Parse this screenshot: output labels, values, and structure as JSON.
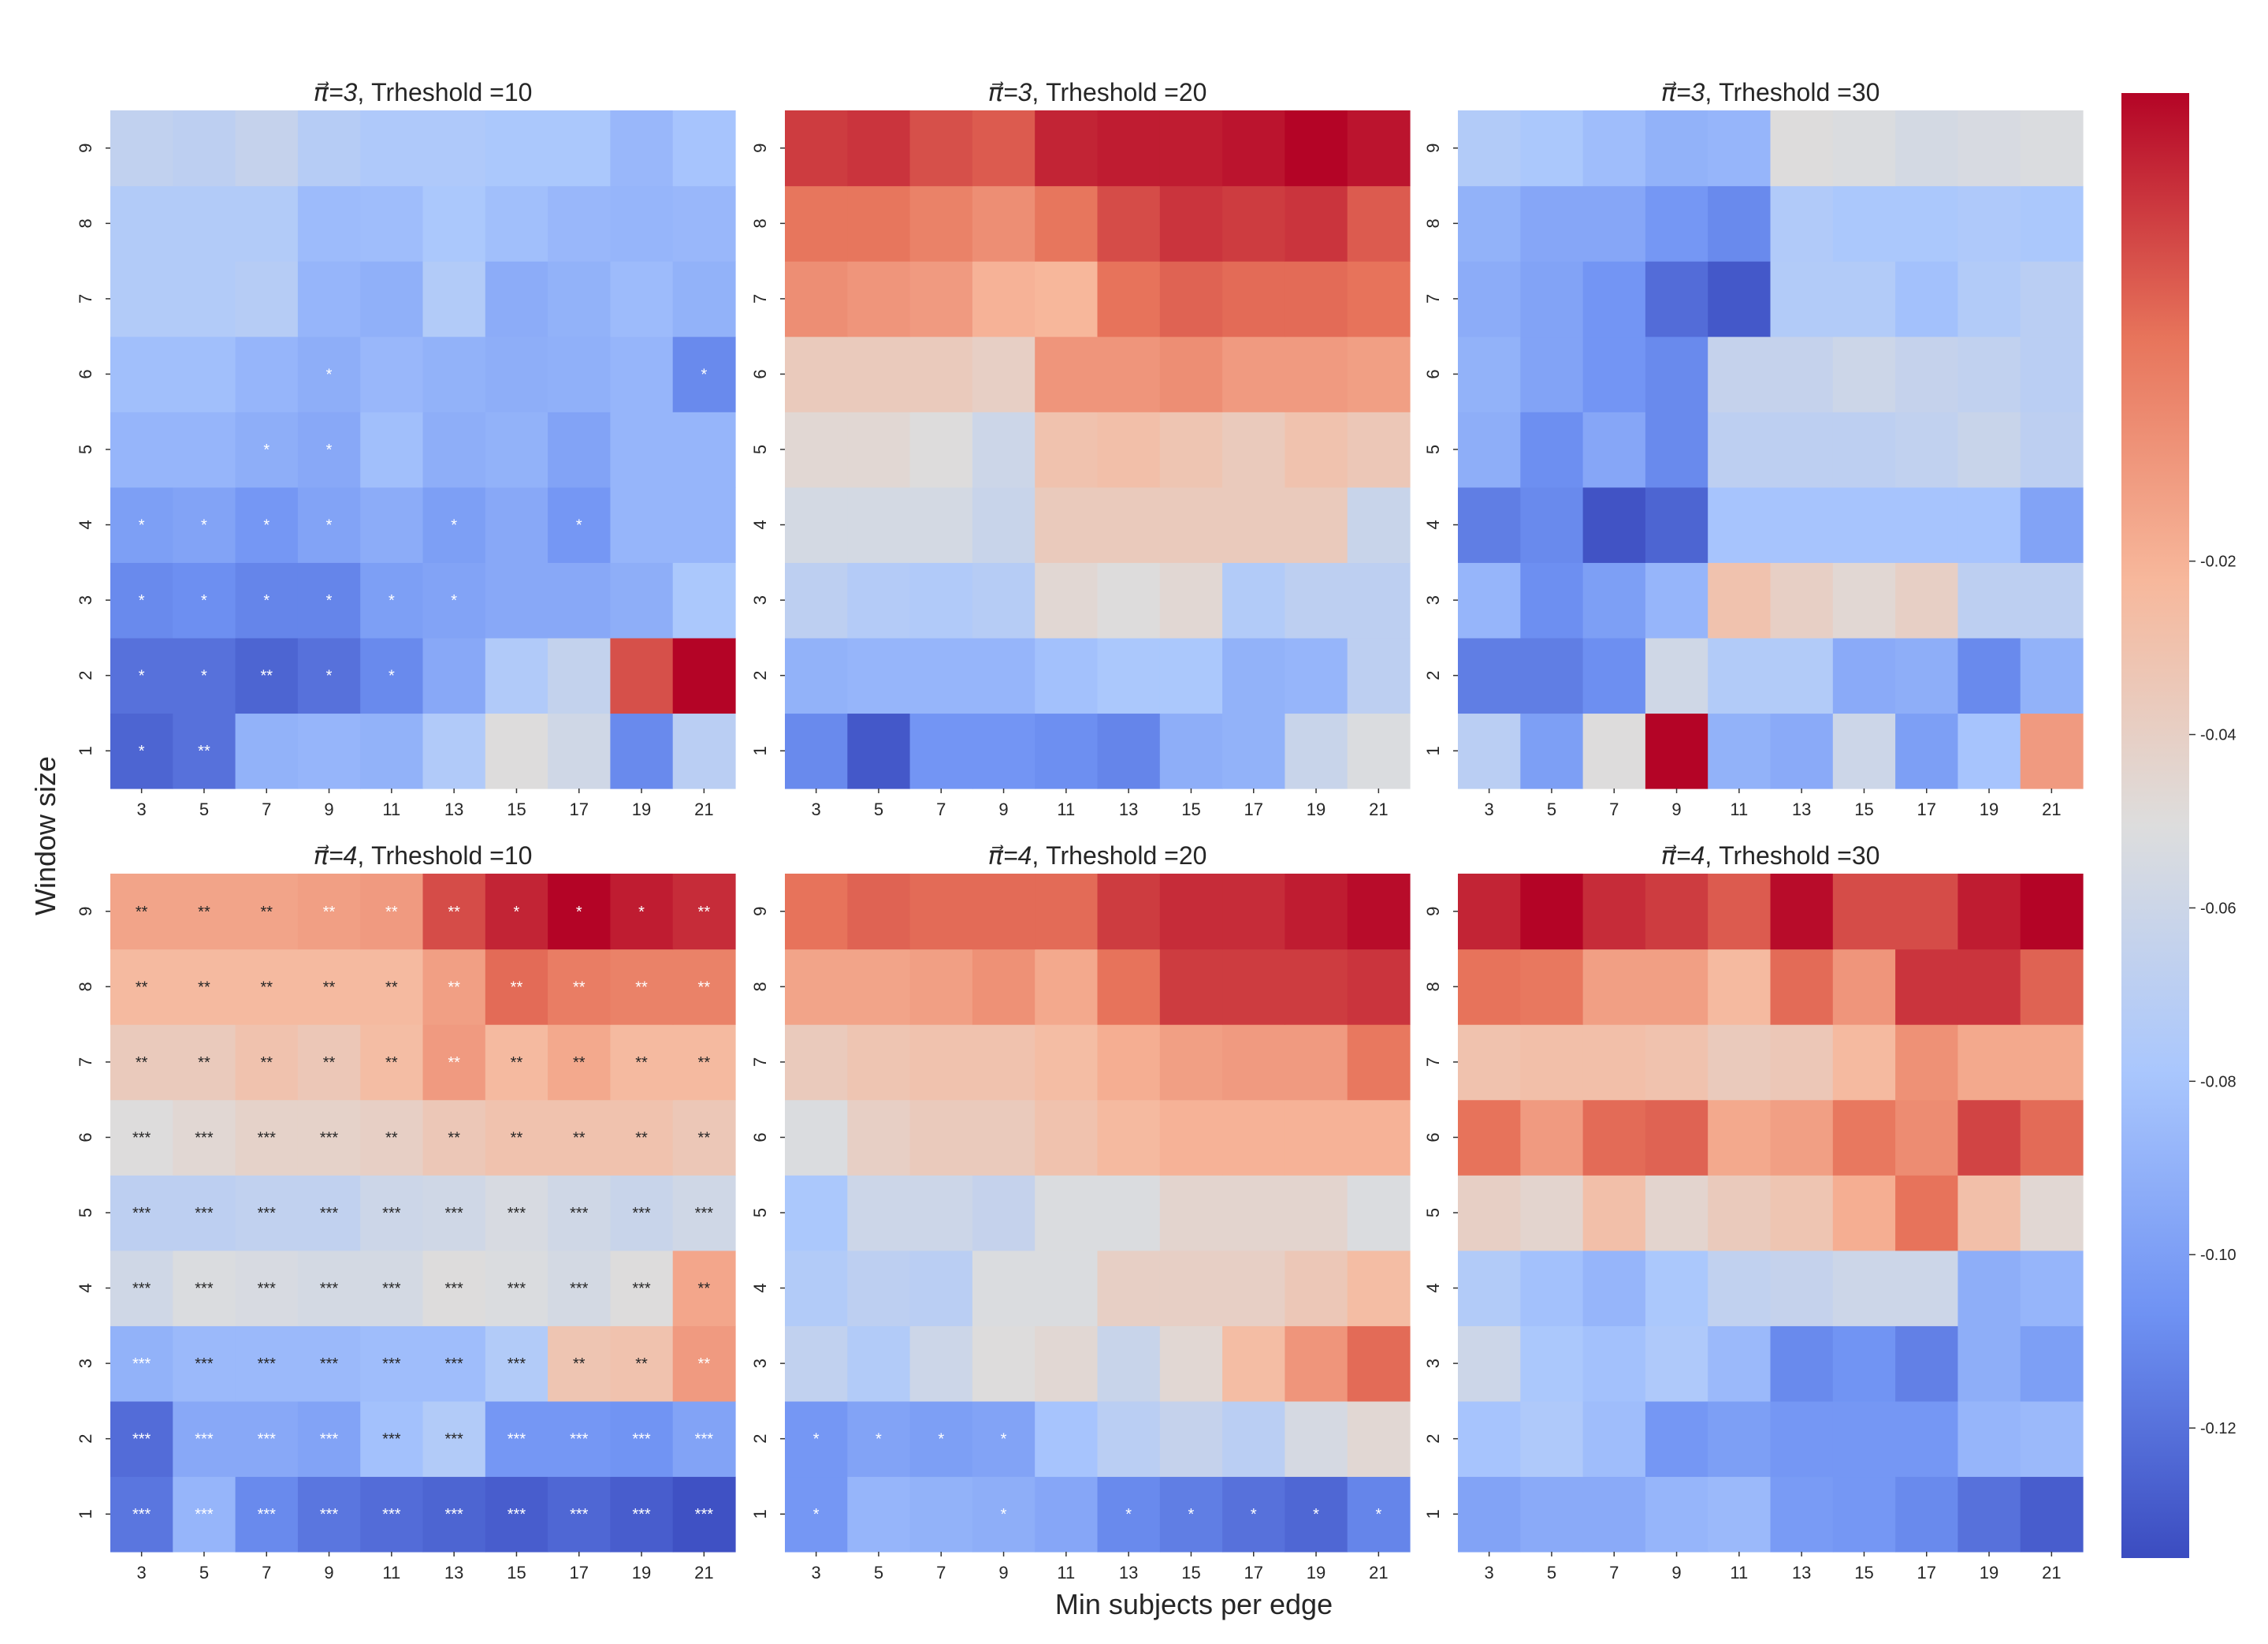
{
  "figure": {
    "ylabel": "Window size",
    "xlabel": "Min subjects per edge",
    "colorbar": {
      "ticks": [
        -0.12,
        -0.1,
        -0.08,
        -0.06,
        -0.04,
        -0.02
      ],
      "tick_labels": [
        "-0.12",
        "-0.10",
        "-0.08",
        "-0.06",
        "-0.04",
        "-0.02"
      ],
      "range": [
        -0.135,
        0.034
      ],
      "colormap": [
        "#3b4cc0",
        "#6f92f3",
        "#aac7fd",
        "#dddddd",
        "#f7b89c",
        "#e7745b",
        "#b40426"
      ]
    }
  },
  "chart_data": [
    {
      "type": "heatmap",
      "title_prefix": "π⃗=3",
      "title": ", Trheshold =10",
      "x": [
        3,
        5,
        7,
        9,
        11,
        13,
        15,
        17,
        19,
        21
      ],
      "y": [
        1,
        2,
        3,
        4,
        5,
        6,
        7,
        8,
        9
      ],
      "values": [
        [
          -0.125,
          -0.12,
          -0.09,
          -0.088,
          -0.09,
          -0.075,
          -0.05,
          -0.058,
          -0.11,
          -0.07
        ],
        [
          -0.12,
          -0.12,
          -0.125,
          -0.12,
          -0.11,
          -0.095,
          -0.075,
          -0.065,
          0.015,
          0.034
        ],
        [
          -0.11,
          -0.108,
          -0.112,
          -0.112,
          -0.1,
          -0.098,
          -0.095,
          -0.095,
          -0.092,
          -0.078
        ],
        [
          -0.1,
          -0.098,
          -0.104,
          -0.098,
          -0.093,
          -0.1,
          -0.095,
          -0.104,
          -0.088,
          -0.088
        ],
        [
          -0.088,
          -0.088,
          -0.092,
          -0.095,
          -0.083,
          -0.092,
          -0.09,
          -0.098,
          -0.088,
          -0.088
        ],
        [
          -0.083,
          -0.083,
          -0.088,
          -0.092,
          -0.087,
          -0.09,
          -0.092,
          -0.091,
          -0.088,
          -0.11
        ],
        [
          -0.074,
          -0.074,
          -0.072,
          -0.088,
          -0.091,
          -0.074,
          -0.093,
          -0.09,
          -0.085,
          -0.09
        ],
        [
          -0.074,
          -0.074,
          -0.074,
          -0.085,
          -0.084,
          -0.078,
          -0.083,
          -0.087,
          -0.088,
          -0.087
        ],
        [
          -0.066,
          -0.068,
          -0.064,
          -0.072,
          -0.076,
          -0.076,
          -0.078,
          -0.078,
          -0.087,
          -0.08
        ]
      ],
      "annotations": [
        [
          "*",
          "**",
          "",
          "",
          "",
          "",
          "",
          "",
          "",
          ""
        ],
        [
          "*",
          "*",
          "**",
          "*",
          "*",
          "",
          "",
          "",
          "",
          ""
        ],
        [
          "*",
          "*",
          "*",
          "*",
          "*",
          "*",
          "",
          "",
          "",
          ""
        ],
        [
          "*",
          "*",
          "*",
          "*",
          "",
          "*",
          "",
          "*",
          "",
          ""
        ],
        [
          "",
          "",
          "*",
          "*",
          "",
          "",
          "",
          "",
          "",
          ""
        ],
        [
          "",
          "",
          "",
          "*",
          "",
          "",
          "",
          "",
          "",
          "*"
        ],
        [
          "",
          "",
          "",
          "",
          "",
          "",
          "",
          "",
          "",
          ""
        ],
        [
          "",
          "",
          "",
          "",
          "",
          "",
          "",
          "",
          "",
          ""
        ],
        [
          "",
          "",
          "",
          "",
          "",
          "",
          "",
          "",
          "",
          ""
        ]
      ]
    },
    {
      "type": "heatmap",
      "title_prefix": "π⃗=3",
      "title": ", Trheshold =20",
      "x": [
        3,
        5,
        7,
        9,
        11,
        13,
        15,
        17,
        19,
        21
      ],
      "y": [
        1,
        2,
        3,
        4,
        5,
        6,
        7,
        8,
        9
      ],
      "values": [
        [
          -0.11,
          -0.13,
          -0.105,
          -0.105,
          -0.108,
          -0.112,
          -0.092,
          -0.09,
          -0.062,
          -0.052
        ],
        [
          -0.09,
          -0.088,
          -0.088,
          -0.088,
          -0.082,
          -0.078,
          -0.078,
          -0.09,
          -0.088,
          -0.068
        ],
        [
          -0.068,
          -0.073,
          -0.075,
          -0.072,
          -0.046,
          -0.05,
          -0.046,
          -0.074,
          -0.068,
          -0.068
        ],
        [
          -0.056,
          -0.056,
          -0.056,
          -0.062,
          -0.036,
          -0.036,
          -0.036,
          -0.036,
          -0.036,
          -0.062
        ],
        [
          -0.046,
          -0.046,
          -0.05,
          -0.06,
          -0.03,
          -0.028,
          -0.032,
          -0.036,
          -0.03,
          -0.034
        ],
        [
          -0.036,
          -0.036,
          -0.036,
          -0.04,
          -0.008,
          -0.008,
          -0.005,
          -0.01,
          -0.01,
          -0.012
        ],
        [
          -0.005,
          -0.008,
          -0.01,
          -0.02,
          -0.022,
          0.006,
          0.01,
          0.008,
          0.008,
          0.006
        ],
        [
          0.005,
          0.005,
          0.0,
          -0.005,
          0.005,
          0.016,
          0.022,
          0.02,
          0.022,
          0.012
        ],
        [
          0.02,
          0.022,
          0.015,
          0.012,
          0.026,
          0.028,
          0.028,
          0.03,
          0.034,
          0.03
        ]
      ],
      "annotations": []
    },
    {
      "type": "heatmap",
      "title_prefix": "π⃗=3",
      "title": ", Trheshold =30",
      "x": [
        3,
        5,
        7,
        9,
        11,
        13,
        15,
        17,
        19,
        21
      ],
      "y": [
        1,
        2,
        3,
        4,
        5,
        6,
        7,
        8,
        9
      ],
      "values": [
        [
          -0.07,
          -0.1,
          -0.05,
          0.034,
          -0.09,
          -0.094,
          -0.06,
          -0.1,
          -0.08,
          -0.01
        ],
        [
          -0.115,
          -0.115,
          -0.108,
          -0.058,
          -0.074,
          -0.074,
          -0.094,
          -0.092,
          -0.11,
          -0.09
        ],
        [
          -0.088,
          -0.108,
          -0.1,
          -0.088,
          -0.03,
          -0.04,
          -0.046,
          -0.04,
          -0.068,
          -0.068
        ],
        [
          -0.115,
          -0.11,
          -0.132,
          -0.125,
          -0.08,
          -0.08,
          -0.08,
          -0.08,
          -0.08,
          -0.098
        ],
        [
          -0.092,
          -0.108,
          -0.096,
          -0.11,
          -0.068,
          -0.068,
          -0.068,
          -0.066,
          -0.062,
          -0.068
        ],
        [
          -0.09,
          -0.098,
          -0.105,
          -0.11,
          -0.064,
          -0.064,
          -0.06,
          -0.064,
          -0.066,
          -0.07
        ],
        [
          -0.093,
          -0.098,
          -0.105,
          -0.122,
          -0.13,
          -0.074,
          -0.074,
          -0.082,
          -0.074,
          -0.07
        ],
        [
          -0.09,
          -0.096,
          -0.096,
          -0.104,
          -0.11,
          -0.075,
          -0.078,
          -0.078,
          -0.076,
          -0.078
        ],
        [
          -0.074,
          -0.078,
          -0.084,
          -0.09,
          -0.088,
          -0.05,
          -0.052,
          -0.056,
          -0.054,
          -0.052
        ]
      ],
      "annotations": []
    },
    {
      "type": "heatmap",
      "title_prefix": "π⃗=4",
      "title": ", Trheshold =10",
      "x": [
        3,
        5,
        7,
        9,
        11,
        13,
        15,
        17,
        19,
        21
      ],
      "y": [
        1,
        2,
        3,
        4,
        5,
        6,
        7,
        8,
        9
      ],
      "values": [
        [
          -0.118,
          -0.088,
          -0.11,
          -0.118,
          -0.122,
          -0.125,
          -0.128,
          -0.124,
          -0.128,
          -0.133
        ],
        [
          -0.122,
          -0.095,
          -0.095,
          -0.098,
          -0.082,
          -0.074,
          -0.104,
          -0.104,
          -0.106,
          -0.098
        ],
        [
          -0.09,
          -0.086,
          -0.086,
          -0.086,
          -0.084,
          -0.084,
          -0.074,
          -0.032,
          -0.03,
          -0.01
        ],
        [
          -0.058,
          -0.052,
          -0.054,
          -0.056,
          -0.056,
          -0.05,
          -0.052,
          -0.056,
          -0.05,
          -0.015
        ],
        [
          -0.068,
          -0.068,
          -0.066,
          -0.066,
          -0.06,
          -0.058,
          -0.054,
          -0.058,
          -0.062,
          -0.058
        ],
        [
          -0.05,
          -0.046,
          -0.042,
          -0.042,
          -0.04,
          -0.034,
          -0.03,
          -0.03,
          -0.03,
          -0.034
        ],
        [
          -0.036,
          -0.036,
          -0.03,
          -0.034,
          -0.026,
          -0.01,
          -0.024,
          -0.016,
          -0.024,
          -0.024
        ],
        [
          -0.024,
          -0.024,
          -0.024,
          -0.024,
          -0.024,
          -0.012,
          0.008,
          0.002,
          0.0,
          0.0
        ],
        [
          -0.014,
          -0.014,
          -0.014,
          -0.012,
          -0.01,
          0.016,
          0.026,
          0.034,
          0.028,
          0.024
        ]
      ],
      "annotations": [
        [
          "***",
          "***",
          "***",
          "***",
          "***",
          "***",
          "***",
          "***",
          "***",
          "***"
        ],
        [
          "***",
          "***",
          "***",
          "***",
          "***",
          "***",
          "***",
          "***",
          "***",
          "***"
        ],
        [
          "***",
          "***",
          "***",
          "***",
          "***",
          "***",
          "***",
          "**",
          "**",
          "**"
        ],
        [
          "***",
          "***",
          "***",
          "***",
          "***",
          "***",
          "***",
          "***",
          "***",
          "**"
        ],
        [
          "***",
          "***",
          "***",
          "***",
          "***",
          "***",
          "***",
          "***",
          "***",
          "***"
        ],
        [
          "***",
          "***",
          "***",
          "***",
          "**",
          "**",
          "**",
          "**",
          "**",
          "**"
        ],
        [
          "**",
          "**",
          "**",
          "**",
          "**",
          "**",
          "**",
          "**",
          "**",
          "**"
        ],
        [
          "**",
          "**",
          "**",
          "**",
          "**",
          "**",
          "**",
          "**",
          "**",
          "**"
        ],
        [
          "**",
          "**",
          "**",
          "**",
          "**",
          "**",
          "*",
          "*",
          "*",
          "**"
        ]
      ]
    },
    {
      "type": "heatmap",
      "title_prefix": "π⃗=4",
      "title": ", Trheshold =20",
      "x": [
        3,
        5,
        7,
        9,
        11,
        13,
        15,
        17,
        19,
        21
      ],
      "y": [
        1,
        2,
        3,
        4,
        5,
        6,
        7,
        8,
        9
      ],
      "values": [
        [
          -0.104,
          -0.088,
          -0.09,
          -0.092,
          -0.096,
          -0.11,
          -0.115,
          -0.12,
          -0.124,
          -0.112
        ],
        [
          -0.104,
          -0.098,
          -0.1,
          -0.098,
          -0.08,
          -0.07,
          -0.064,
          -0.07,
          -0.055,
          -0.046
        ],
        [
          -0.066,
          -0.074,
          -0.06,
          -0.05,
          -0.046,
          -0.062,
          -0.046,
          -0.026,
          -0.008,
          0.008
        ],
        [
          -0.074,
          -0.068,
          -0.07,
          -0.052,
          -0.052,
          -0.04,
          -0.04,
          -0.04,
          -0.034,
          -0.026
        ],
        [
          -0.078,
          -0.06,
          -0.06,
          -0.064,
          -0.052,
          -0.052,
          -0.044,
          -0.044,
          -0.044,
          -0.052
        ],
        [
          -0.052,
          -0.04,
          -0.036,
          -0.036,
          -0.03,
          -0.024,
          -0.02,
          -0.02,
          -0.02,
          -0.02
        ],
        [
          -0.036,
          -0.032,
          -0.03,
          -0.03,
          -0.026,
          -0.018,
          -0.012,
          -0.01,
          -0.01,
          0.004
        ],
        [
          -0.014,
          -0.014,
          -0.012,
          -0.006,
          -0.016,
          0.006,
          0.02,
          0.02,
          0.02,
          0.022
        ],
        [
          0.006,
          0.01,
          0.008,
          0.008,
          0.008,
          0.02,
          0.024,
          0.024,
          0.028,
          0.032
        ]
      ],
      "annotations": [
        [
          "*",
          "",
          "",
          "*",
          "",
          "*",
          "*",
          "*",
          "*",
          "*"
        ],
        [
          "*",
          "*",
          "*",
          "*",
          "",
          "",
          "",
          "",
          "",
          ""
        ],
        [
          "",
          "",
          "",
          "",
          "",
          "",
          "",
          "",
          "",
          ""
        ],
        [
          "",
          "",
          "",
          "",
          "",
          "",
          "",
          "",
          "",
          ""
        ],
        [
          "",
          "",
          "",
          "",
          "",
          "",
          "",
          "",
          "",
          ""
        ],
        [
          "",
          "",
          "",
          "",
          "",
          "",
          "",
          "",
          "",
          ""
        ],
        [
          "",
          "",
          "",
          "",
          "",
          "",
          "",
          "",
          "",
          ""
        ],
        [
          "",
          "",
          "",
          "",
          "",
          "",
          "",
          "",
          "",
          ""
        ],
        [
          "",
          "",
          "",
          "",
          "",
          "",
          "",
          "",
          "",
          ""
        ]
      ]
    },
    {
      "type": "heatmap",
      "title_prefix": "π⃗=4",
      "title": ", Trheshold =30",
      "x": [
        3,
        5,
        7,
        9,
        11,
        13,
        15,
        17,
        19,
        21
      ],
      "y": [
        1,
        2,
        3,
        4,
        5,
        6,
        7,
        8,
        9
      ],
      "values": [
        [
          -0.098,
          -0.094,
          -0.094,
          -0.088,
          -0.086,
          -0.102,
          -0.104,
          -0.11,
          -0.12,
          -0.128
        ],
        [
          -0.08,
          -0.076,
          -0.084,
          -0.104,
          -0.1,
          -0.104,
          -0.104,
          -0.104,
          -0.088,
          -0.086
        ],
        [
          -0.06,
          -0.078,
          -0.082,
          -0.076,
          -0.086,
          -0.11,
          -0.106,
          -0.114,
          -0.092,
          -0.1
        ],
        [
          -0.074,
          -0.082,
          -0.088,
          -0.078,
          -0.066,
          -0.064,
          -0.06,
          -0.06,
          -0.092,
          -0.088
        ],
        [
          -0.04,
          -0.044,
          -0.028,
          -0.044,
          -0.036,
          -0.032,
          -0.018,
          0.006,
          -0.028,
          -0.046
        ],
        [
          0.006,
          -0.01,
          0.008,
          0.01,
          -0.016,
          -0.012,
          0.004,
          -0.004,
          0.018,
          0.008
        ],
        [
          -0.03,
          -0.028,
          -0.028,
          -0.03,
          -0.036,
          -0.034,
          -0.024,
          -0.006,
          -0.016,
          -0.016
        ],
        [
          0.006,
          0.004,
          -0.012,
          -0.012,
          -0.024,
          0.008,
          -0.008,
          0.022,
          0.022,
          0.01
        ],
        [
          0.026,
          0.034,
          0.024,
          0.02,
          0.012,
          0.032,
          0.016,
          0.016,
          0.028,
          0.034
        ]
      ],
      "annotations": []
    }
  ]
}
